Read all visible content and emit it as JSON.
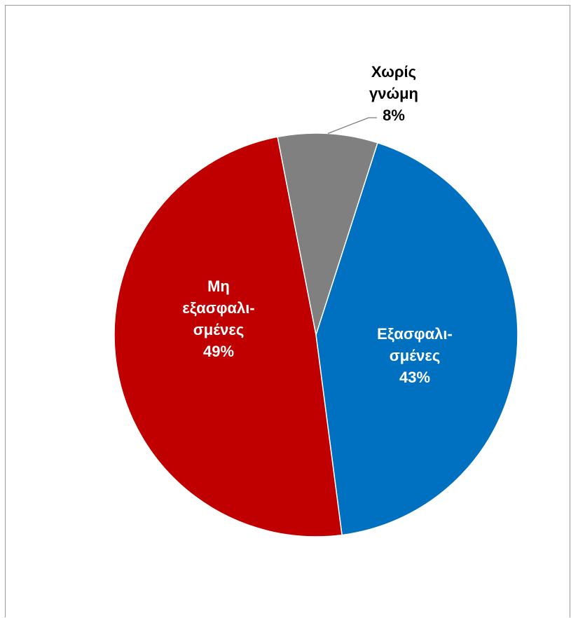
{
  "chart_data": {
    "type": "pie",
    "title": "",
    "categories": [
      "Εξασφαλι-σμένες",
      "Μη εξασφαλι-σμένες",
      "Χωρίς γνώμη"
    ],
    "values": [
      43,
      49,
      8
    ],
    "value_unit": "%",
    "start_category": "Χωρίς γνώμη",
    "direction": "clockwise",
    "legend": "none",
    "slices": [
      {
        "name": "Χωρίς γνώμη",
        "value": 8,
        "color": "#808080",
        "label_lines": [
          "Χωρίς",
          "γνώμη"
        ],
        "percent_text": "8%",
        "label_color": "#000000"
      },
      {
        "name": "Εξασφαλι-σμένες",
        "value": 43,
        "color": "#0070C0",
        "label_lines": [
          "Εξασφαλι-",
          "σμένες"
        ],
        "percent_text": "43%",
        "label_color": "#ffffff"
      },
      {
        "name": "Μη εξασφαλι-σμένες",
        "value": 49,
        "color": "#C00000",
        "label_lines": [
          "Μη",
          "εξασφαλι-",
          "σμένες"
        ],
        "percent_text": "49%",
        "label_color": "#ffffff"
      }
    ]
  }
}
